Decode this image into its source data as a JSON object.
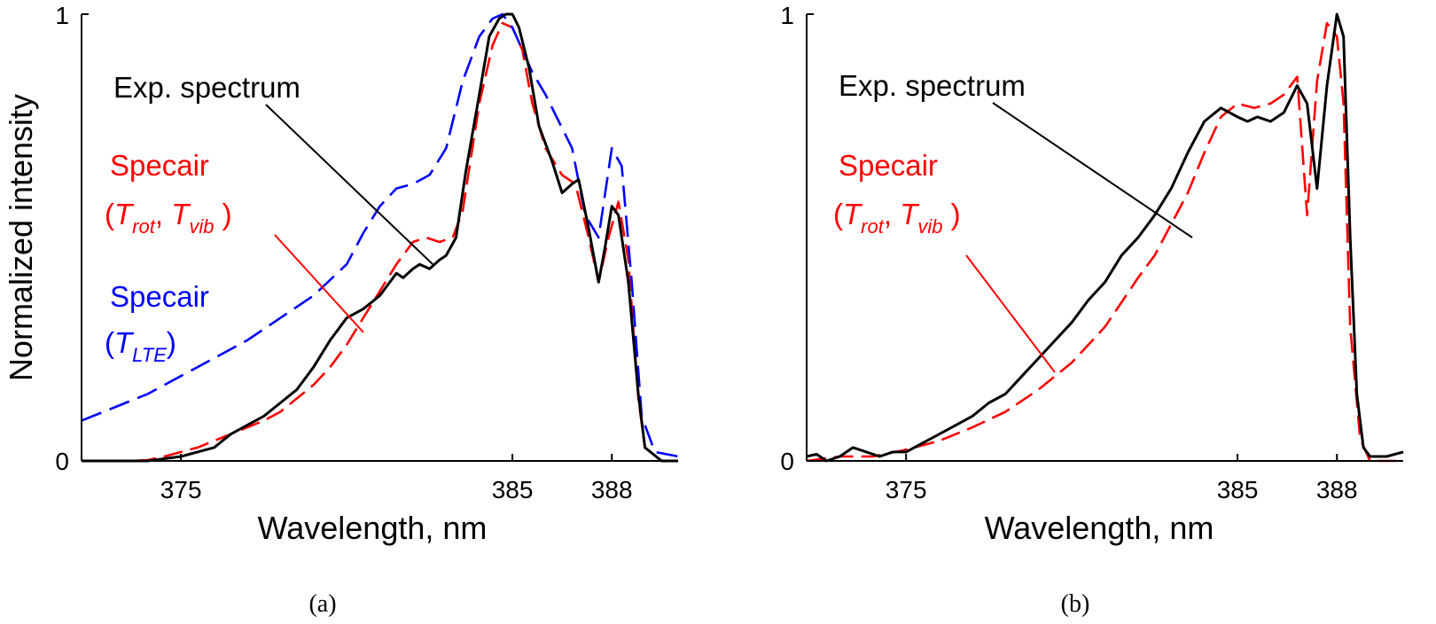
{
  "chart_data": [
    {
      "type": "line",
      "panel": "(a)",
      "xlabel": "Wavelength, nm",
      "ylabel": "Normalized intensity",
      "xlim": [
        372,
        390
      ],
      "ylim": [
        0,
        1
      ],
      "xticks": [
        "375",
        "385",
        "388"
      ],
      "yticks": [
        "0",
        "1"
      ],
      "caption": "(a)",
      "annotations": {
        "exp": "Exp. spectrum",
        "specair1_title": "Specair",
        "specair1_params": [
          "T",
          "rot",
          "T",
          "vib"
        ],
        "specair2_title": "Specair",
        "specair2_params": [
          "T",
          "LTE"
        ]
      },
      "series": [
        {
          "name": "Exp. spectrum",
          "color": "#000000",
          "style": "solid",
          "x": [
            372,
            373,
            373.5,
            374,
            374.5,
            375,
            375.5,
            376,
            376.5,
            377,
            377.5,
            378,
            378.5,
            379,
            379.5,
            380,
            380.5,
            381,
            381.2,
            381.5,
            381.7,
            382,
            382.2,
            382.5,
            382.8,
            383,
            383.3,
            383.6,
            384,
            384.3,
            384.6,
            384.8,
            385,
            385.2,
            385.5,
            385.8,
            386.2,
            386.5,
            386.8,
            387,
            387.3,
            387.6,
            387.8,
            388,
            388.2,
            388.5,
            388.8,
            389,
            389.5,
            390
          ],
          "values": [
            0,
            0,
            0,
            0,
            0.005,
            0.01,
            0.02,
            0.03,
            0.06,
            0.08,
            0.1,
            0.13,
            0.16,
            0.21,
            0.27,
            0.32,
            0.34,
            0.37,
            0.39,
            0.42,
            0.41,
            0.43,
            0.44,
            0.43,
            0.45,
            0.46,
            0.5,
            0.65,
            0.82,
            0.95,
            0.99,
            1,
            1,
            0.97,
            0.88,
            0.75,
            0.67,
            0.6,
            0.62,
            0.63,
            0.52,
            0.4,
            0.48,
            0.57,
            0.55,
            0.4,
            0.15,
            0.03,
            0,
            0
          ]
        },
        {
          "name": "Specair (T_rot, T_vib)",
          "color": "#ff0000",
          "style": "dashed",
          "x": [
            372,
            373,
            373.5,
            374,
            374.5,
            375,
            375.5,
            376,
            376.5,
            377,
            377.5,
            378,
            378.5,
            379,
            379.5,
            380,
            380.5,
            381,
            381.5,
            382,
            382.4,
            382.8,
            383.2,
            383.5,
            384,
            384.4,
            384.7,
            385,
            385.3,
            385.6,
            386,
            386.5,
            386.9,
            387.3,
            387.6,
            387.9,
            388.2,
            388.5,
            388.8,
            389,
            389.5,
            390
          ],
          "values": [
            0,
            0,
            0,
            0.002,
            0.01,
            0.02,
            0.03,
            0.045,
            0.06,
            0.075,
            0.09,
            0.11,
            0.14,
            0.17,
            0.21,
            0.26,
            0.32,
            0.38,
            0.44,
            0.49,
            0.5,
            0.49,
            0.5,
            0.56,
            0.8,
            0.93,
            0.98,
            0.97,
            0.92,
            0.8,
            0.7,
            0.64,
            0.62,
            0.5,
            0.4,
            0.5,
            0.58,
            0.45,
            0.14,
            0.03,
            0,
            0
          ]
        },
        {
          "name": "Specair (T_LTE)",
          "color": "#0000ff",
          "style": "dashed",
          "x": [
            372,
            373,
            374,
            375,
            376,
            377,
            378,
            379,
            380,
            380.5,
            381,
            381.5,
            382,
            382.5,
            383,
            383.5,
            384,
            384.4,
            384.7,
            385,
            385.3,
            385.6,
            386,
            386.4,
            386.8,
            387.2,
            387.6,
            388,
            388.3,
            388.6,
            388.9,
            389.3,
            390
          ],
          "values": [
            0.09,
            0.12,
            0.15,
            0.19,
            0.23,
            0.27,
            0.32,
            0.37,
            0.44,
            0.51,
            0.57,
            0.61,
            0.62,
            0.64,
            0.7,
            0.85,
            0.95,
            0.99,
            1,
            0.97,
            0.92,
            0.87,
            0.82,
            0.76,
            0.7,
            0.55,
            0.5,
            0.7,
            0.66,
            0.4,
            0.1,
            0.02,
            0.01
          ]
        }
      ]
    },
    {
      "type": "line",
      "panel": "(b)",
      "xlabel": "Wavelength, nm",
      "ylabel": "",
      "xlim": [
        372,
        390
      ],
      "ylim": [
        0,
        1
      ],
      "xticks": [
        "375",
        "385",
        "388"
      ],
      "yticks": [
        "0",
        "1"
      ],
      "caption": "(b)",
      "annotations": {
        "exp": "Exp. spectrum",
        "specair1_title": "Specair",
        "specair1_params": [
          "T",
          "rot",
          "T",
          "vib"
        ]
      },
      "series": [
        {
          "name": "Exp. spectrum",
          "color": "#000000",
          "style": "solid",
          "x": [
            372,
            372.3,
            372.6,
            373,
            373.4,
            373.8,
            374.2,
            374.6,
            375,
            375.5,
            376,
            376.5,
            377,
            377.5,
            378,
            378.5,
            379,
            379.5,
            380,
            380.5,
            381,
            381.5,
            382,
            382.5,
            383,
            383.5,
            384,
            384.5,
            385,
            385.3,
            385.6,
            386,
            386.4,
            386.8,
            387.1,
            387.4,
            387.7,
            388,
            388.2,
            388.4,
            388.6,
            388.8,
            389,
            389.5,
            390
          ],
          "values": [
            0.01,
            0.015,
            0,
            0.01,
            0.03,
            0.02,
            0.01,
            0.02,
            0.02,
            0.04,
            0.06,
            0.08,
            0.1,
            0.13,
            0.15,
            0.19,
            0.23,
            0.27,
            0.31,
            0.36,
            0.4,
            0.46,
            0.5,
            0.55,
            0.61,
            0.69,
            0.76,
            0.79,
            0.77,
            0.76,
            0.77,
            0.76,
            0.78,
            0.84,
            0.8,
            0.61,
            0.84,
            1,
            0.95,
            0.5,
            0.15,
            0.03,
            0.01,
            0.01,
            0.02
          ]
        },
        {
          "name": "Specair (T_rot, T_vib)",
          "color": "#ff0000",
          "style": "dashed",
          "x": [
            372,
            373,
            374,
            375,
            376,
            377,
            378,
            379,
            380,
            381,
            382,
            382.5,
            383,
            383.5,
            384,
            384.5,
            385,
            385.5,
            386,
            386.4,
            386.8,
            387.1,
            387.4,
            387.7,
            388,
            388.2,
            388.4,
            388.7,
            389,
            389.5,
            390
          ],
          "values": [
            0,
            0.01,
            0.01,
            0.025,
            0.045,
            0.075,
            0.11,
            0.16,
            0.22,
            0.3,
            0.41,
            0.46,
            0.53,
            0.6,
            0.69,
            0.77,
            0.8,
            0.79,
            0.8,
            0.82,
            0.86,
            0.55,
            0.85,
            0.98,
            0.95,
            0.8,
            0.3,
            0.05,
            0,
            0,
            0
          ]
        }
      ]
    }
  ]
}
